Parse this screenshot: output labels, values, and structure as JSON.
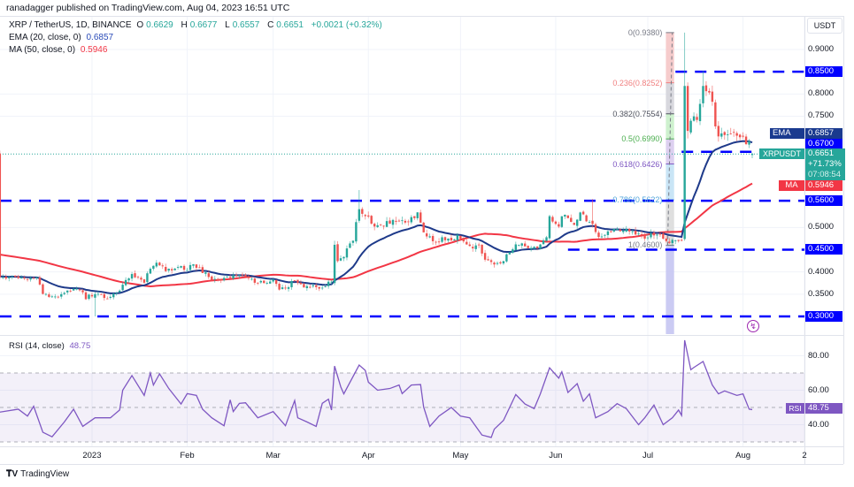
{
  "header": {
    "published": "ranadagger published on TradingView.com, Aug 04, 2023 16:51 UTC",
    "symbol": "XRP / TetherUS, 1D, BINANCE",
    "o_label": "O",
    "o": "0.6629",
    "h_label": "H",
    "h": "0.6677",
    "l_label": "L",
    "l": "0.6557",
    "c_label": "C",
    "c": "0.6651",
    "change": "+0.0021 (+0.32%)",
    "ema_label": "EMA (20, close, 0)",
    "ema_value": "0.6857",
    "ma_label": "MA (50, close, 0)",
    "ma_value": "0.5946",
    "rsi_label": "RSI (14, close)",
    "rsi_value": "48.75"
  },
  "axis": {
    "currency": "USDT",
    "price_ticks": [
      "0.9000",
      "0.8000",
      "0.7500",
      "0.5000",
      "0.4000",
      "0.3500"
    ],
    "rsi_ticks": [
      "80.00",
      "60.00",
      "40.00"
    ],
    "time_ticks": [
      "2023",
      "Feb",
      "Mar",
      "Apr",
      "May",
      "Jun",
      "Jul",
      "Aug",
      "2"
    ],
    "time_tick_dates": [
      "2023-01-01",
      "2023-02-01",
      "2023-03-01",
      "2023-04-01",
      "2023-05-01",
      "2023-06-01",
      "2023-07-01",
      "2023-08-01",
      "2023-08-21"
    ]
  },
  "tags": {
    "ema": {
      "name": "EMA",
      "value": "0.6857",
      "color": "#1a3a8f"
    },
    "level_067": {
      "value": "0.6700",
      "color": "#0000ff"
    },
    "price": {
      "name": "XRPUSDT",
      "value": "0.6651",
      "change": "+71.73%",
      "countdown": "07:08:54",
      "color": "#26a69a"
    },
    "ma": {
      "name": "MA",
      "value": "0.5946",
      "color": "#f23645"
    },
    "rsi": {
      "name": "RSI",
      "value": "48.75",
      "color": "#7e57c2"
    }
  },
  "levels": [
    {
      "label": "0.8500",
      "price": 0.85,
      "from_days_before_last": 25
    },
    {
      "label": "0.6700",
      "price": 0.67,
      "from_days_before_last": 23
    },
    {
      "label": "0.5600",
      "price": 0.56,
      "from_days_before_last": 245
    },
    {
      "label": "0.4500",
      "price": 0.45,
      "from_days_before_last": 60
    },
    {
      "label": "0.3000",
      "price": 0.3,
      "from_days_before_last": 245
    }
  ],
  "fib": {
    "levels": [
      {
        "label": "0(0.9380)",
        "price": 0.938,
        "color": "#787b86",
        "fill": "#f5c6c6"
      },
      {
        "label": "0.236(0.8252)",
        "price": 0.8252,
        "color": "#f08080",
        "fill": "#d4d4da"
      },
      {
        "label": "0.382(0.7554)",
        "price": 0.7554,
        "color": "#50535e",
        "fill": "#c9f0c9"
      },
      {
        "label": "0.5(0.6990)",
        "price": 0.699,
        "color": "#4caf50",
        "fill": "#d9cbee"
      },
      {
        "label": "0.618(0.6426)",
        "price": 0.6426,
        "color": "#7e57c2",
        "fill": "#c3e2f5"
      },
      {
        "label": "0.786(0.5622)",
        "price": 0.5622,
        "color": "#4fa3db",
        "fill": "#dcdcdc"
      },
      {
        "label": "1(0.4600)",
        "price": 0.46,
        "color": "#787b86",
        "fill": "#c5c5f2"
      }
    ],
    "start_days_before_last": 31,
    "end_days_before_last": 24
  },
  "chart_data": [
    {
      "type": "candlestick",
      "title": "XRP / TetherUS, 1D, BINANCE",
      "last_date": "2023-08-04",
      "ylim": [
        0.27,
        0.96
      ],
      "close_keypoints_days_before_last": [
        [
          245,
          0.39
        ],
        [
          243,
          0.389
        ],
        [
          235,
          0.385
        ],
        [
          233,
          0.389
        ],
        [
          231,
          0.35
        ],
        [
          228,
          0.342
        ],
        [
          225,
          0.35
        ],
        [
          221,
          0.362
        ],
        [
          219,
          0.36
        ],
        [
          217,
          0.342
        ],
        [
          214,
          0.35
        ],
        [
          210,
          0.342
        ],
        [
          207,
          0.35
        ],
        [
          205,
          0.37
        ],
        [
          202,
          0.395
        ],
        [
          198,
          0.379
        ],
        [
          196,
          0.409
        ],
        [
          193,
          0.419
        ],
        [
          191,
          0.405
        ],
        [
          187,
          0.409
        ],
        [
          184,
          0.409
        ],
        [
          182,
          0.415
        ],
        [
          179,
          0.399
        ],
        [
          176,
          0.385
        ],
        [
          173,
          0.379
        ],
        [
          170,
          0.391
        ],
        [
          168,
          0.391
        ],
        [
          164,
          0.389
        ],
        [
          161,
          0.375
        ],
        [
          156,
          0.379
        ],
        [
          154,
          0.36
        ],
        [
          151,
          0.37
        ],
        [
          149,
          0.381
        ],
        [
          146,
          0.362
        ],
        [
          144,
          0.37
        ],
        [
          141,
          0.36
        ],
        [
          138,
          0.375
        ],
        [
          137,
          0.375
        ],
        [
          136,
          0.461
        ],
        [
          135,
          0.421
        ],
        [
          133,
          0.439
        ],
        [
          130,
          0.471
        ],
        [
          129,
          0.515
        ],
        [
          128,
          0.541
        ],
        [
          126,
          0.528
        ],
        [
          124,
          0.515
        ],
        [
          122,
          0.499
        ],
        [
          119,
          0.508
        ],
        [
          115,
          0.515
        ],
        [
          112,
          0.518
        ],
        [
          109,
          0.528
        ],
        [
          107,
          0.488
        ],
        [
          104,
          0.469
        ],
        [
          100,
          0.474
        ],
        [
          96,
          0.478
        ],
        [
          93,
          0.459
        ],
        [
          89,
          0.455
        ],
        [
          87,
          0.429
        ],
        [
          84,
          0.421
        ],
        [
          81,
          0.425
        ],
        [
          79,
          0.449
        ],
        [
          76,
          0.465
        ],
        [
          73,
          0.459
        ],
        [
          70,
          0.455
        ],
        [
          67,
          0.481
        ],
        [
          66,
          0.524
        ],
        [
          63,
          0.508
        ],
        [
          61,
          0.534
        ],
        [
          58,
          0.508
        ],
        [
          56,
          0.534
        ],
        [
          54,
          0.515
        ],
        [
          52,
          0.508
        ],
        [
          50,
          0.481
        ],
        [
          47,
          0.491
        ],
        [
          43,
          0.495
        ],
        [
          39,
          0.488
        ],
        [
          35,
          0.474
        ],
        [
          33,
          0.488
        ],
        [
          30,
          0.478
        ],
        [
          27,
          0.471
        ],
        [
          24,
          0.474
        ],
        [
          23,
          0.471
        ],
        [
          22,
          0.818
        ],
        [
          21,
          0.717
        ],
        [
          19,
          0.753
        ],
        [
          18,
          0.739
        ],
        [
          17,
          0.779
        ],
        [
          16,
          0.818
        ],
        [
          14,
          0.797
        ],
        [
          13,
          0.773
        ],
        [
          12,
          0.733
        ],
        [
          11,
          0.699
        ],
        [
          9,
          0.707
        ],
        [
          7,
          0.717
        ],
        [
          5,
          0.707
        ],
        [
          3,
          0.703
        ],
        [
          1,
          0.687
        ],
        [
          0,
          0.6651
        ]
      ],
      "special_candles": [
        {
          "days_before_last": 22,
          "open": 0.474,
          "high": 0.938,
          "low": 0.47,
          "close": 0.818
        },
        {
          "days_before_last": 21,
          "open": 0.818,
          "high": 0.826,
          "low": 0.7,
          "close": 0.717
        },
        {
          "days_before_last": 16,
          "open": 0.779,
          "high": 0.852,
          "low": 0.77,
          "close": 0.818
        },
        {
          "days_before_last": 214,
          "open": 0.342,
          "high": 0.355,
          "low": 0.3,
          "close": 0.35
        },
        {
          "days_before_last": 136,
          "open": 0.375,
          "high": 0.47,
          "low": 0.37,
          "close": 0.461
        },
        {
          "days_before_last": 128,
          "open": 0.515,
          "high": 0.584,
          "low": 0.51,
          "close": 0.541
        },
        {
          "days_before_last": 52,
          "open": 0.515,
          "high": 0.564,
          "low": 0.5,
          "close": 0.508
        },
        {
          "days_before_last": 0,
          "open": 0.6629,
          "high": 0.6677,
          "low": 0.6557,
          "close": 0.6651
        }
      ],
      "series": [
        {
          "name": "EMA (20, close, 0)",
          "color": "#1e3a8a",
          "last": 0.6857
        },
        {
          "name": "MA (50, close, 0)",
          "color": "#f23645",
          "last": 0.5946
        }
      ]
    },
    {
      "type": "line",
      "title": "RSI (14, close)",
      "ylim": [
        20,
        95
      ],
      "bands": {
        "upper": 70,
        "middle": 50,
        "lower": 30
      },
      "color": "#7e57c2",
      "points_days_before_last": [
        [
          245,
          47.3
        ],
        [
          239,
          49
        ],
        [
          236,
          45
        ],
        [
          234,
          50.7
        ],
        [
          231,
          35.6
        ],
        [
          228,
          33
        ],
        [
          224,
          41.6
        ],
        [
          221,
          49
        ],
        [
          218,
          39
        ],
        [
          214,
          44
        ],
        [
          209,
          44
        ],
        [
          206,
          48.5
        ],
        [
          205,
          60
        ],
        [
          202,
          68.5
        ],
        [
          198,
          57
        ],
        [
          196,
          70
        ],
        [
          195,
          63
        ],
        [
          193,
          69.5
        ],
        [
          190,
          61
        ],
        [
          186,
          52
        ],
        [
          184,
          58
        ],
        [
          181,
          57
        ],
        [
          179,
          49
        ],
        [
          176,
          44
        ],
        [
          172,
          39.4
        ],
        [
          170,
          54.4
        ],
        [
          169,
          47.6
        ],
        [
          167,
          52.4
        ],
        [
          165,
          52.7
        ],
        [
          161,
          44
        ],
        [
          156,
          47.6
        ],
        [
          152,
          39.4
        ],
        [
          149,
          54
        ],
        [
          148,
          44
        ],
        [
          145,
          41.6
        ],
        [
          142,
          39
        ],
        [
          140,
          52.4
        ],
        [
          138,
          54.8
        ],
        [
          137,
          48.5
        ],
        [
          136,
          74
        ],
        [
          134,
          62
        ],
        [
          133,
          57.9
        ],
        [
          128,
          74.6
        ],
        [
          126,
          71.5
        ],
        [
          125,
          64.7
        ],
        [
          122,
          60
        ],
        [
          118,
          61
        ],
        [
          115,
          63
        ],
        [
          114,
          58
        ],
        [
          111,
          63
        ],
        [
          108,
          63.3
        ],
        [
          107,
          50.2
        ],
        [
          105,
          39
        ],
        [
          102,
          45
        ],
        [
          98,
          50
        ],
        [
          95,
          45
        ],
        [
          92,
          44
        ],
        [
          88,
          34
        ],
        [
          85,
          32.6
        ],
        [
          84,
          37.4
        ],
        [
          81,
          42.5
        ],
        [
          77,
          57.5
        ],
        [
          74,
          52
        ],
        [
          71,
          49.3
        ],
        [
          69,
          57.9
        ],
        [
          66,
          73
        ],
        [
          63,
          67
        ],
        [
          62,
          70.7
        ],
        [
          60,
          58.7
        ],
        [
          57,
          63.8
        ],
        [
          55,
          53.6
        ],
        [
          53,
          57.9
        ],
        [
          51,
          44
        ],
        [
          47,
          47.6
        ],
        [
          44,
          52.2
        ],
        [
          41,
          49.3
        ],
        [
          37,
          40
        ],
        [
          35,
          44
        ],
        [
          32,
          51.4
        ],
        [
          29,
          40
        ],
        [
          26,
          44
        ],
        [
          24,
          48.5
        ],
        [
          23,
          45.4
        ],
        [
          22,
          89
        ],
        [
          20,
          71.9
        ],
        [
          19,
          73.2
        ],
        [
          16,
          76.7
        ],
        [
          13,
          63
        ],
        [
          11,
          57.9
        ],
        [
          9,
          59.6
        ],
        [
          5,
          57
        ],
        [
          3,
          57.9
        ],
        [
          1,
          49
        ],
        [
          0,
          48.75
        ]
      ]
    }
  ],
  "colors": {
    "up": "#26a69a",
    "down": "#ef5350",
    "level": "#0000ff",
    "grid": "#f0f3fa"
  },
  "footer": {
    "brand": "TradingView"
  },
  "icons": {
    "alert": "lightning-icon"
  }
}
